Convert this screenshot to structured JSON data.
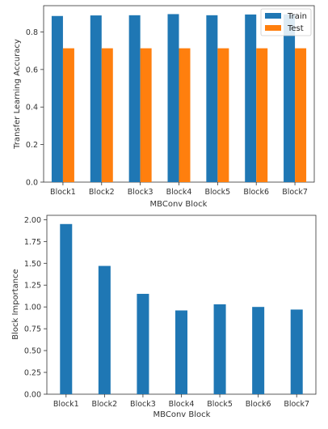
{
  "chart_data": [
    {
      "type": "bar",
      "categories": [
        "Block1",
        "Block2",
        "Block3",
        "Block4",
        "Block5",
        "Block6",
        "Block7"
      ],
      "series": [
        {
          "name": "Train",
          "values": [
            0.885,
            0.888,
            0.889,
            0.895,
            0.889,
            0.893,
            0.894
          ],
          "color": "#1f77b4"
        },
        {
          "name": "Test",
          "values": [
            0.713,
            0.713,
            0.713,
            0.713,
            0.713,
            0.713,
            0.713
          ],
          "color": "#ff7f0e"
        }
      ],
      "xlabel": "MBConv Block",
      "ylabel": "Transfer Learning Accuracy",
      "ylim": [
        0,
        0.94
      ],
      "yticks": [
        0.0,
        0.2,
        0.4,
        0.6,
        0.8
      ],
      "ytick_labels": [
        "0.0",
        "0.2",
        "0.4",
        "0.6",
        "0.8"
      ],
      "legend": "top-right",
      "grid": false
    },
    {
      "type": "bar",
      "categories": [
        "Block1",
        "Block2",
        "Block3",
        "Block4",
        "Block5",
        "Block6",
        "Block7"
      ],
      "series": [
        {
          "values": [
            1.95,
            1.47,
            1.15,
            0.96,
            1.03,
            1.0,
            0.97
          ],
          "color": "#1f77b4"
        }
      ],
      "xlabel": "MBConv Block",
      "ylabel": "Block Importance",
      "ylim": [
        0,
        2.05
      ],
      "yticks": [
        0.0,
        0.25,
        0.5,
        0.75,
        1.0,
        1.25,
        1.5,
        1.75,
        2.0
      ],
      "ytick_labels": [
        "0.00",
        "0.25",
        "0.50",
        "0.75",
        "1.00",
        "1.25",
        "1.50",
        "1.75",
        "2.00"
      ],
      "grid": false
    }
  ]
}
